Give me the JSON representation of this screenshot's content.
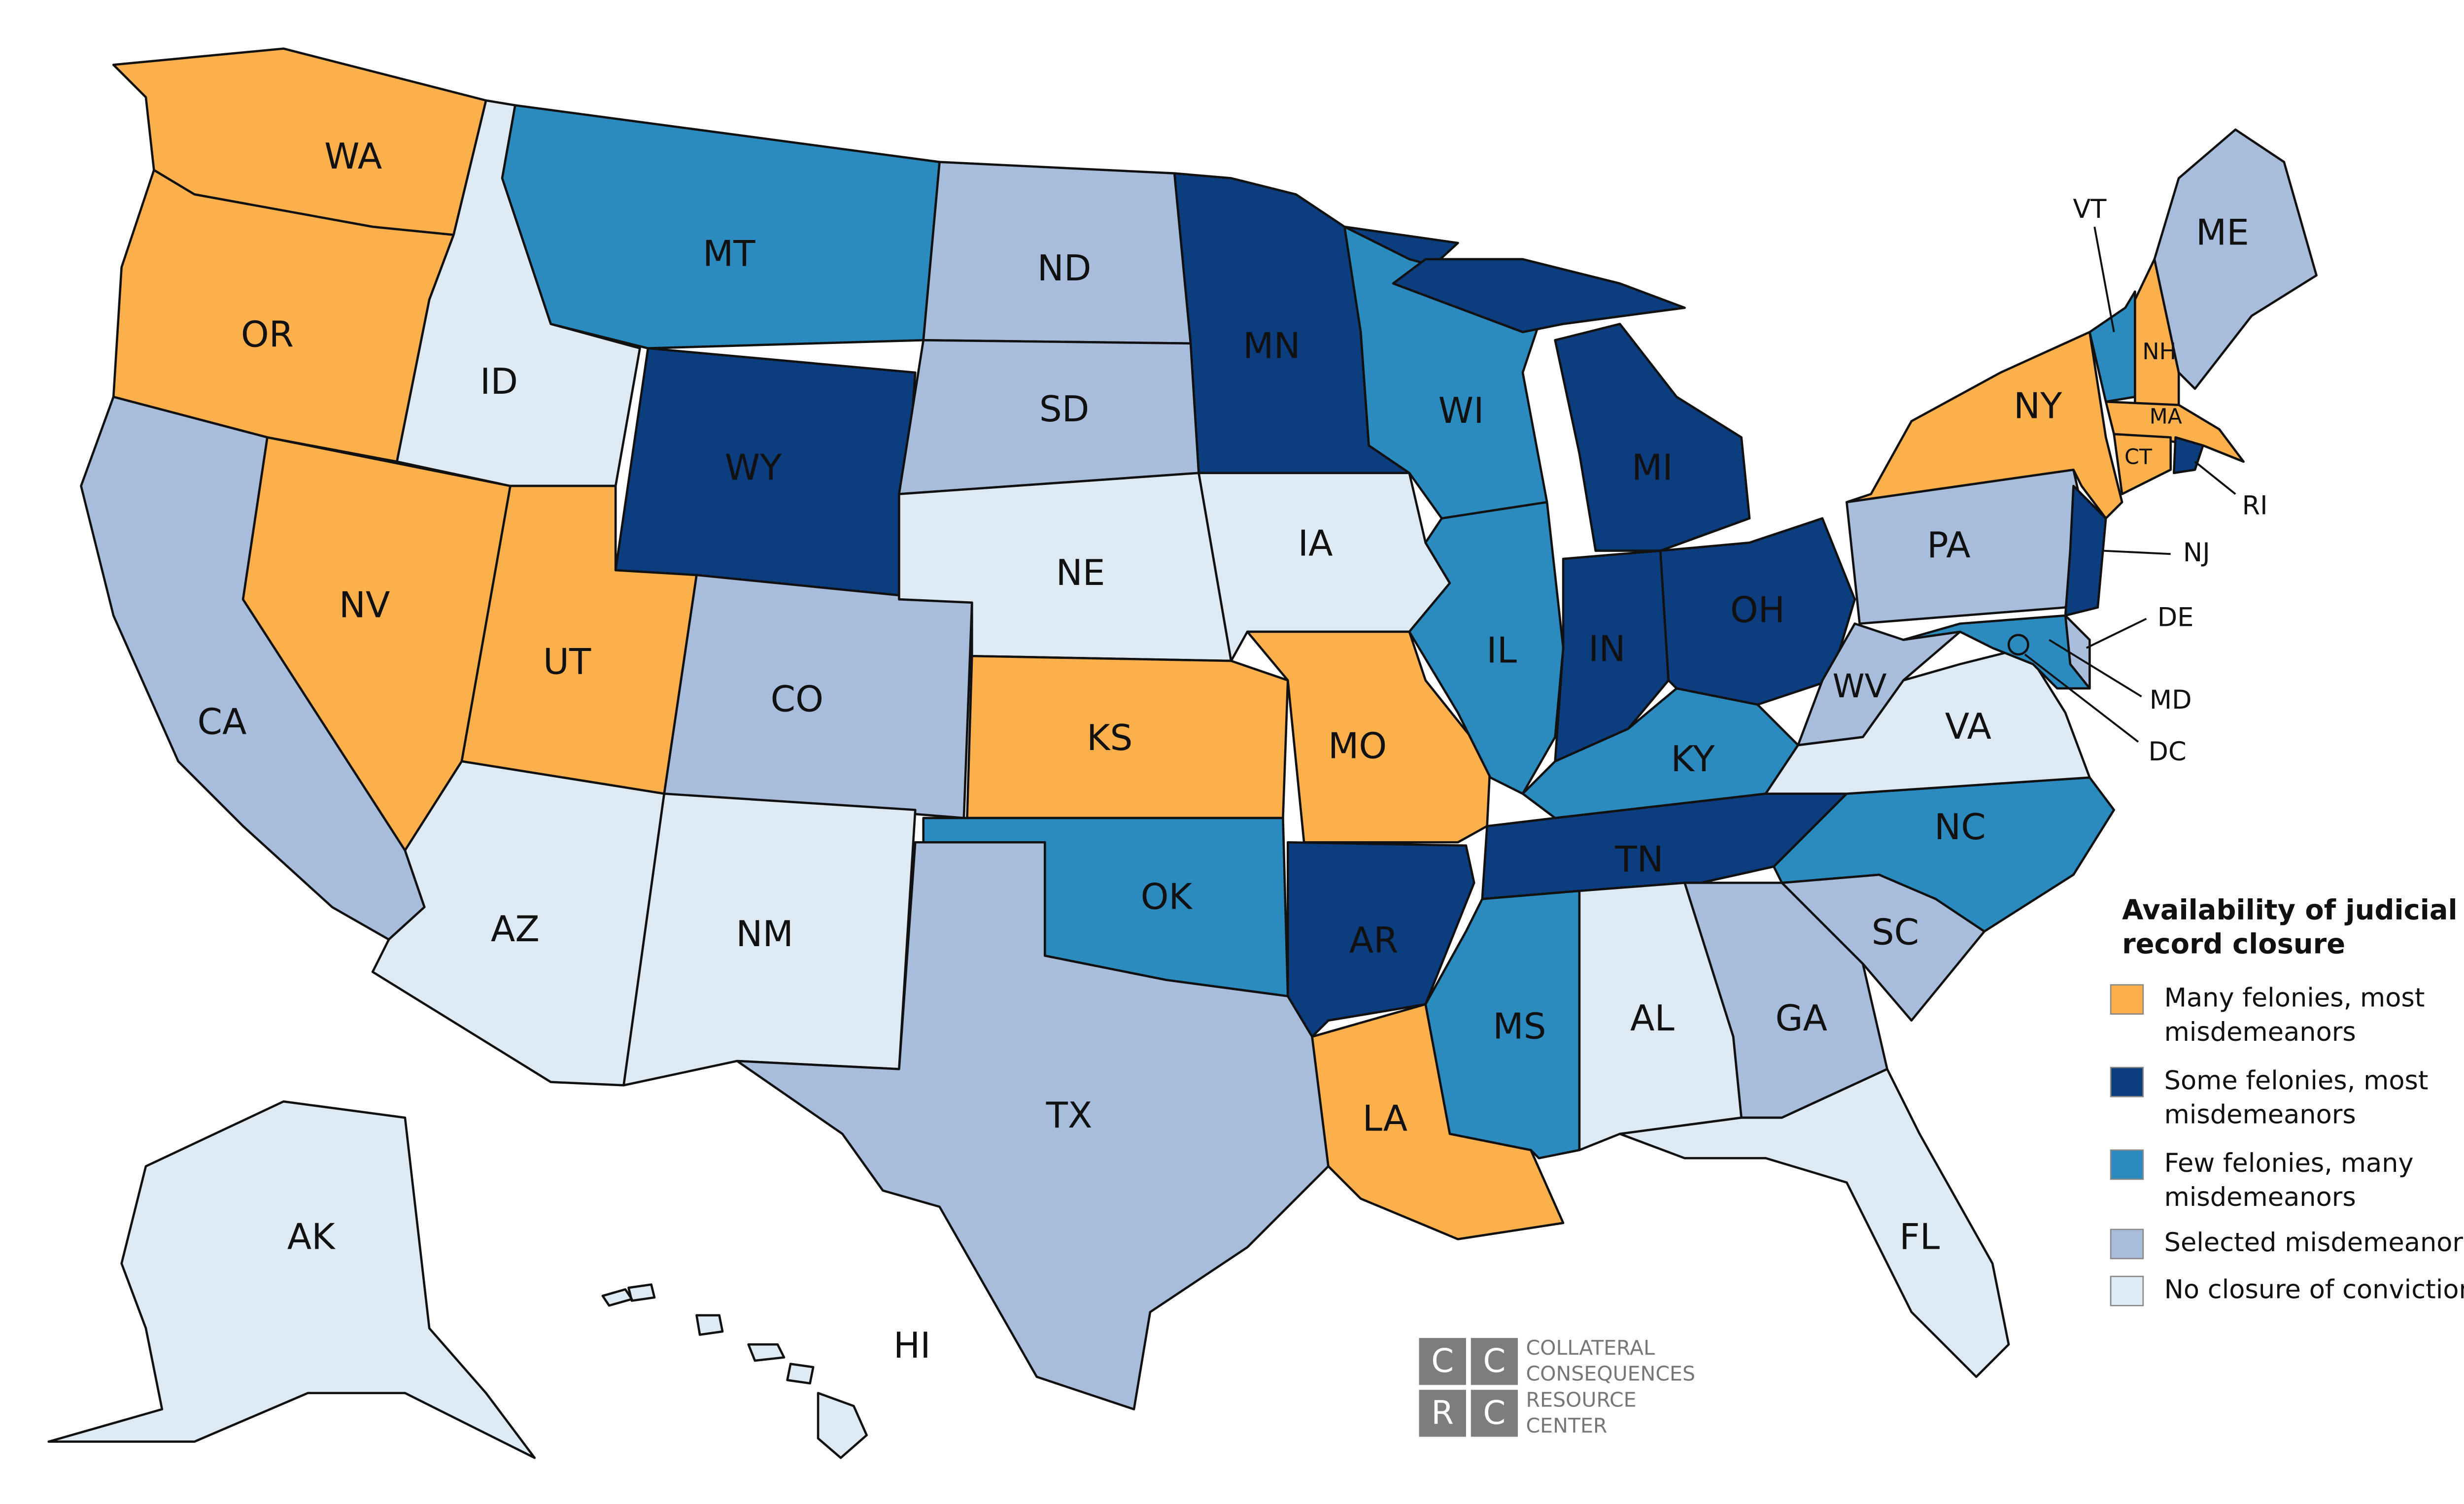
{
  "map": {
    "legend": {
      "title_lines": [
        "Availability of judicial",
        "record closure"
      ],
      "items": [
        {
          "lines": [
            "Many felonies, most",
            "misdemeanors"
          ],
          "color": "#fbb04c"
        },
        {
          "lines": [
            "Some felonies, most",
            "misdemeanors"
          ],
          "color": "#0c3d7e"
        },
        {
          "lines": [
            "Few felonies, many",
            "misdemeanors"
          ],
          "color": "#2b8bbf"
        },
        {
          "lines": [
            "Selected misdemeanors"
          ],
          "color": "#a8bcdc"
        },
        {
          "lines": [
            "No closure of convictions"
          ],
          "color": "#ddeaf4"
        }
      ]
    },
    "states": [
      {
        "label": "WA",
        "category": 0
      },
      {
        "label": "OR",
        "category": 0
      },
      {
        "label": "CA",
        "category": 3
      },
      {
        "label": "NV",
        "category": 0
      },
      {
        "label": "ID",
        "category": 4
      },
      {
        "label": "MT",
        "category": 2
      },
      {
        "label": "WY",
        "category": 1
      },
      {
        "label": "UT",
        "category": 0
      },
      {
        "label": "AZ",
        "category": 4
      },
      {
        "label": "CO",
        "category": 3
      },
      {
        "label": "NM",
        "category": 4
      },
      {
        "label": "ND",
        "category": 3
      },
      {
        "label": "SD",
        "category": 3
      },
      {
        "label": "NE",
        "category": 4
      },
      {
        "label": "KS",
        "category": 0
      },
      {
        "label": "OK",
        "category": 2
      },
      {
        "label": "TX",
        "category": 3
      },
      {
        "label": "MN",
        "category": 1
      },
      {
        "label": "IA",
        "category": 4
      },
      {
        "label": "MO",
        "category": 0
      },
      {
        "label": "AR",
        "category": 1
      },
      {
        "label": "LA",
        "category": 0
      },
      {
        "label": "WI",
        "category": 2
      },
      {
        "label": "IL",
        "category": 2
      },
      {
        "label": "MI",
        "category": 1
      },
      {
        "label": "IN",
        "category": 1
      },
      {
        "label": "OH",
        "category": 1
      },
      {
        "label": "KY",
        "category": 2
      },
      {
        "label": "TN",
        "category": 1
      },
      {
        "label": "MS",
        "category": 2
      },
      {
        "label": "AL",
        "category": 4
      },
      {
        "label": "GA",
        "category": 3
      },
      {
        "label": "FL",
        "category": 4
      },
      {
        "label": "SC",
        "category": 3
      },
      {
        "label": "NC",
        "category": 2
      },
      {
        "label": "VA",
        "category": 4
      },
      {
        "label": "WV",
        "category": 3
      },
      {
        "label": "PA",
        "category": 3
      },
      {
        "label": "NY",
        "category": 0
      },
      {
        "label": "VT",
        "category": 2
      },
      {
        "label": "NH",
        "category": 0
      },
      {
        "label": "ME",
        "category": 3
      },
      {
        "label": "MA",
        "category": 0
      },
      {
        "label": "CT",
        "category": 0
      },
      {
        "label": "RI",
        "category": 1
      },
      {
        "label": "NJ",
        "category": 1
      },
      {
        "label": "DE",
        "category": 3
      },
      {
        "label": "MD",
        "category": 2
      },
      {
        "label": "DC",
        "category": 2
      },
      {
        "label": "AK",
        "category": 4
      },
      {
        "label": "HI",
        "category": 4
      }
    ],
    "logo": {
      "letters": [
        "C",
        "C",
        "R",
        "C"
      ],
      "lines": [
        "COLLATERAL",
        "CONSEQUENCES",
        "RESOURCE",
        "CENTER"
      ]
    }
  }
}
